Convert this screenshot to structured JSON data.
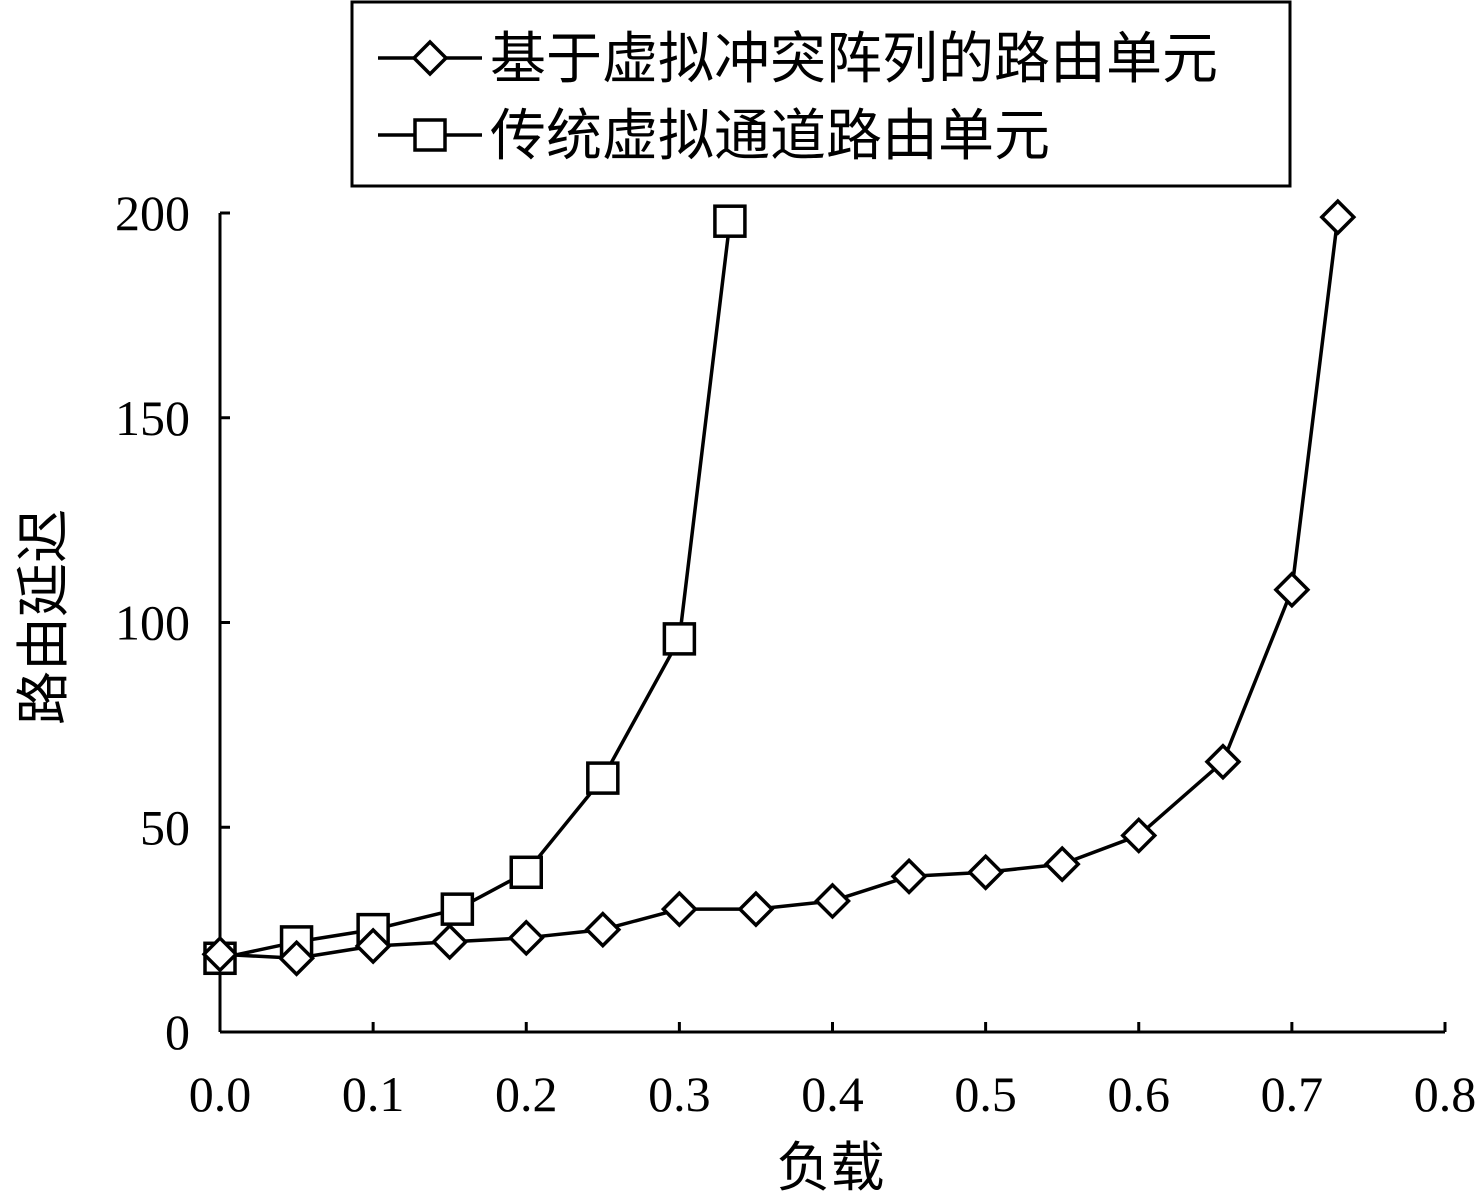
{
  "chart_data": {
    "type": "line",
    "xlabel": "负载",
    "ylabel": "路由延迟",
    "xlim": [
      0,
      0.8
    ],
    "ylim": [
      0,
      200
    ],
    "xticks": [
      "0.0",
      "0.1",
      "0.2",
      "0.3",
      "0.4",
      "0.5",
      "0.6",
      "0.7",
      "0.8"
    ],
    "yticks": [
      "0",
      "50",
      "100",
      "150",
      "200"
    ],
    "grid": false,
    "legend_position": "top",
    "series": [
      {
        "name": "基于虚拟冲突阵列的路由单元",
        "marker": "diamond",
        "x": [
          0.0,
          0.05,
          0.1,
          0.15,
          0.2,
          0.25,
          0.3,
          0.35,
          0.4,
          0.45,
          0.5,
          0.55,
          0.6,
          0.655,
          0.7,
          0.73
        ],
        "y": [
          19,
          18,
          21,
          22,
          23,
          25,
          30,
          30,
          32,
          38,
          39,
          41,
          48,
          66,
          108,
          199
        ]
      },
      {
        "name": "传统虚拟通道路由单元",
        "marker": "square",
        "x": [
          0.0,
          0.05,
          0.1,
          0.155,
          0.2,
          0.25,
          0.3,
          0.333
        ],
        "y": [
          18,
          22,
          25,
          30,
          39,
          62,
          96,
          198
        ]
      }
    ]
  }
}
